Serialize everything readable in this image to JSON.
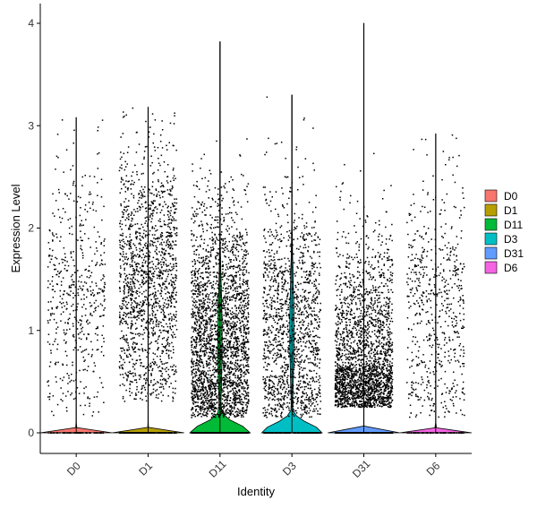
{
  "chart_data": {
    "type": "violin",
    "categories": [
      "D0",
      "D1",
      "D11",
      "D3",
      "D31",
      "D6"
    ],
    "xlabel": "Identity",
    "ylabel": "Expression Level",
    "ylim": [
      -0.2,
      4.2
    ],
    "yticks": [
      0,
      1,
      2,
      3,
      4
    ],
    "grid": false,
    "legend": {
      "position": "right",
      "entries": [
        {
          "label": "D0",
          "color": "#F8766D"
        },
        {
          "label": "D1",
          "color": "#B79F00"
        },
        {
          "label": "D11",
          "color": "#00BA38"
        },
        {
          "label": "D3",
          "color": "#00BFC4"
        },
        {
          "label": "D31",
          "color": "#619CFF"
        },
        {
          "label": "D6",
          "color": "#F564E3"
        }
      ]
    },
    "series": [
      {
        "name": "D0",
        "max": 3.08,
        "point_count": 600,
        "nonzero_min": 0.15,
        "nonzero_mode": 1.4,
        "violin_peak_width": 0.0
      },
      {
        "name": "D1",
        "max": 3.18,
        "point_count": 1800,
        "nonzero_min": 0.3,
        "nonzero_mode": 1.5,
        "violin_peak_width": 0.0
      },
      {
        "name": "D11",
        "max": 3.82,
        "point_count": 3000,
        "nonzero_min": 0.15,
        "nonzero_mode": 0.9,
        "violin_peak_width": 0.42
      },
      {
        "name": "D3",
        "max": 3.3,
        "point_count": 1600,
        "nonzero_min": 0.15,
        "nonzero_mode": 1.0,
        "violin_peak_width": 0.42
      },
      {
        "name": "D31",
        "max": 4.0,
        "point_count": 2600,
        "nonzero_min": 0.25,
        "nonzero_mode": 0.6,
        "violin_peak_width": 0.0
      },
      {
        "name": "D6",
        "max": 2.92,
        "point_count": 700,
        "nonzero_min": 0.15,
        "nonzero_mode": 1.2,
        "violin_peak_width": 0.0
      }
    ]
  }
}
